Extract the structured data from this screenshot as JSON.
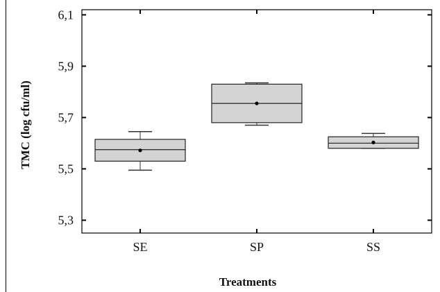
{
  "chart_data": {
    "type": "box",
    "title": "",
    "xlabel": "Treatments",
    "ylabel": "TMC (log cfu/ml)",
    "ylim": [
      5.25,
      6.12
    ],
    "yticks": [
      "5,3",
      "5,5",
      "5,7",
      "5,9",
      "6,1"
    ],
    "ytick_values": [
      5.3,
      5.5,
      5.7,
      5.9,
      6.1
    ],
    "categories": [
      "SE",
      "SP",
      "SS"
    ],
    "boxes": [
      {
        "category": "SE",
        "min": 5.495,
        "q1": 5.53,
        "median": 5.575,
        "q3": 5.615,
        "max": 5.645,
        "mean": 5.572
      },
      {
        "category": "SP",
        "min": 5.67,
        "q1": 5.68,
        "median": 5.755,
        "q3": 5.83,
        "max": 5.835,
        "mean": 5.755
      },
      {
        "category": "SS",
        "min": 5.58,
        "q1": 5.58,
        "median": 5.6,
        "q3": 5.625,
        "max": 5.638,
        "mean": 5.603
      }
    ],
    "grid": false,
    "box_fill": "#d4d4d4"
  }
}
